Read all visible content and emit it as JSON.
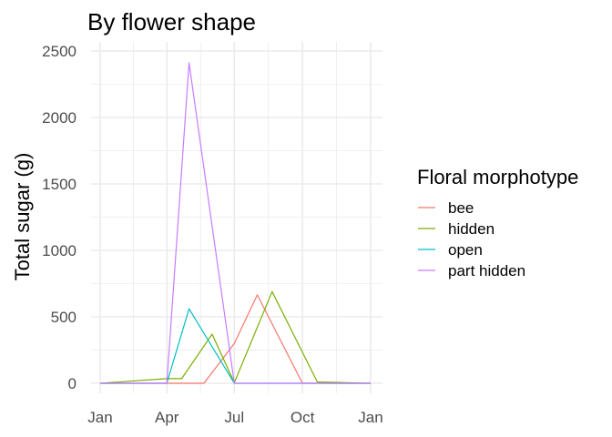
{
  "chart_data": {
    "type": "line",
    "title": "By flower shape",
    "xlabel": "",
    "ylabel": "Total sugar (g)",
    "x_ticks": [
      "Jan",
      "Apr",
      "Jul",
      "Oct",
      "Jan"
    ],
    "y_ticks": [
      "0",
      "500",
      "1000",
      "1500",
      "2000",
      "2500"
    ],
    "ylim": [
      0,
      2500
    ],
    "grid": true,
    "legend": {
      "title": "Floral morphotype",
      "placement": "right"
    },
    "series": [
      {
        "name": "bee",
        "color": "#F8766D",
        "points": [
          [
            "Jan 1",
            0
          ],
          [
            "Apr 1",
            0
          ],
          [
            "May 21",
            0
          ],
          [
            "Jul 1",
            300
          ],
          [
            "Aug 1",
            665
          ],
          [
            "Oct 1",
            0
          ],
          [
            "Jan 1 (next)",
            0
          ]
        ]
      },
      {
        "name": "hidden",
        "color": "#7CAE00",
        "points": [
          [
            "Jan 1",
            0
          ],
          [
            "Apr 1",
            35
          ],
          [
            "Apr 21",
            35
          ],
          [
            "Jun 1",
            370
          ],
          [
            "Jul 1",
            5
          ],
          [
            "Aug 21",
            690
          ],
          [
            "Oct 21",
            10
          ],
          [
            "Jan 1 (next)",
            0
          ]
        ]
      },
      {
        "name": "open",
        "color": "#00BFC4",
        "points": [
          [
            "Jan 1",
            0
          ],
          [
            "Apr 1",
            0
          ],
          [
            "May 1",
            560
          ],
          [
            "Jul 1",
            0
          ],
          [
            "Jan 1 (next)",
            0
          ]
        ]
      },
      {
        "name": "part hidden",
        "color": "#C77CFF",
        "points": [
          [
            "Jan 1",
            0
          ],
          [
            "Apr 1",
            0
          ],
          [
            "May 1",
            2410
          ],
          [
            "Jul 1",
            0
          ],
          [
            "Jan 1 (next)",
            0
          ]
        ]
      }
    ]
  }
}
